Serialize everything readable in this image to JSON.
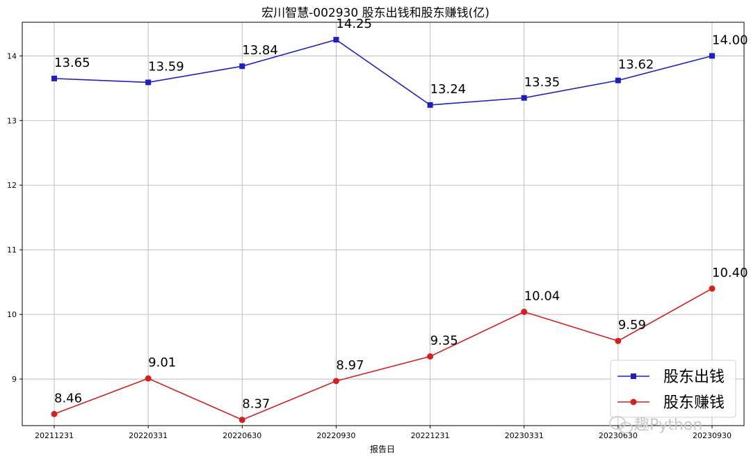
{
  "chart_data": {
    "type": "line",
    "title": "宏川智慧-002930 股东出钱和股东赚钱(亿)",
    "xlabel": "报告日",
    "ylabel": "",
    "categories": [
      "20211231",
      "20220331",
      "20220630",
      "20220930",
      "20221231",
      "20230331",
      "20230630",
      "20230930"
    ],
    "ylim": [
      8.28,
      14.52
    ],
    "yticks": [
      9,
      10,
      11,
      12,
      13,
      14
    ],
    "grid": true,
    "legend_position": "bottom-right",
    "series": [
      {
        "name": "股东出钱",
        "color": "#1f1fbf",
        "marker": "square",
        "values": [
          13.65,
          13.59,
          13.84,
          14.25,
          13.24,
          13.35,
          13.62,
          14.0
        ],
        "labels": [
          "13.65",
          "13.59",
          "13.84",
          "14.25",
          "13.24",
          "13.35",
          "13.62",
          "14.00"
        ]
      },
      {
        "name": "股东赚钱",
        "color": "#d42020",
        "marker": "circle",
        "values": [
          8.46,
          9.01,
          8.37,
          8.97,
          9.35,
          10.04,
          9.59,
          10.4
        ],
        "labels": [
          "8.46",
          "9.01",
          "8.37",
          "8.97",
          "9.35",
          "10.04",
          "9.59",
          "10.40"
        ]
      }
    ]
  },
  "watermark": "趣Python"
}
